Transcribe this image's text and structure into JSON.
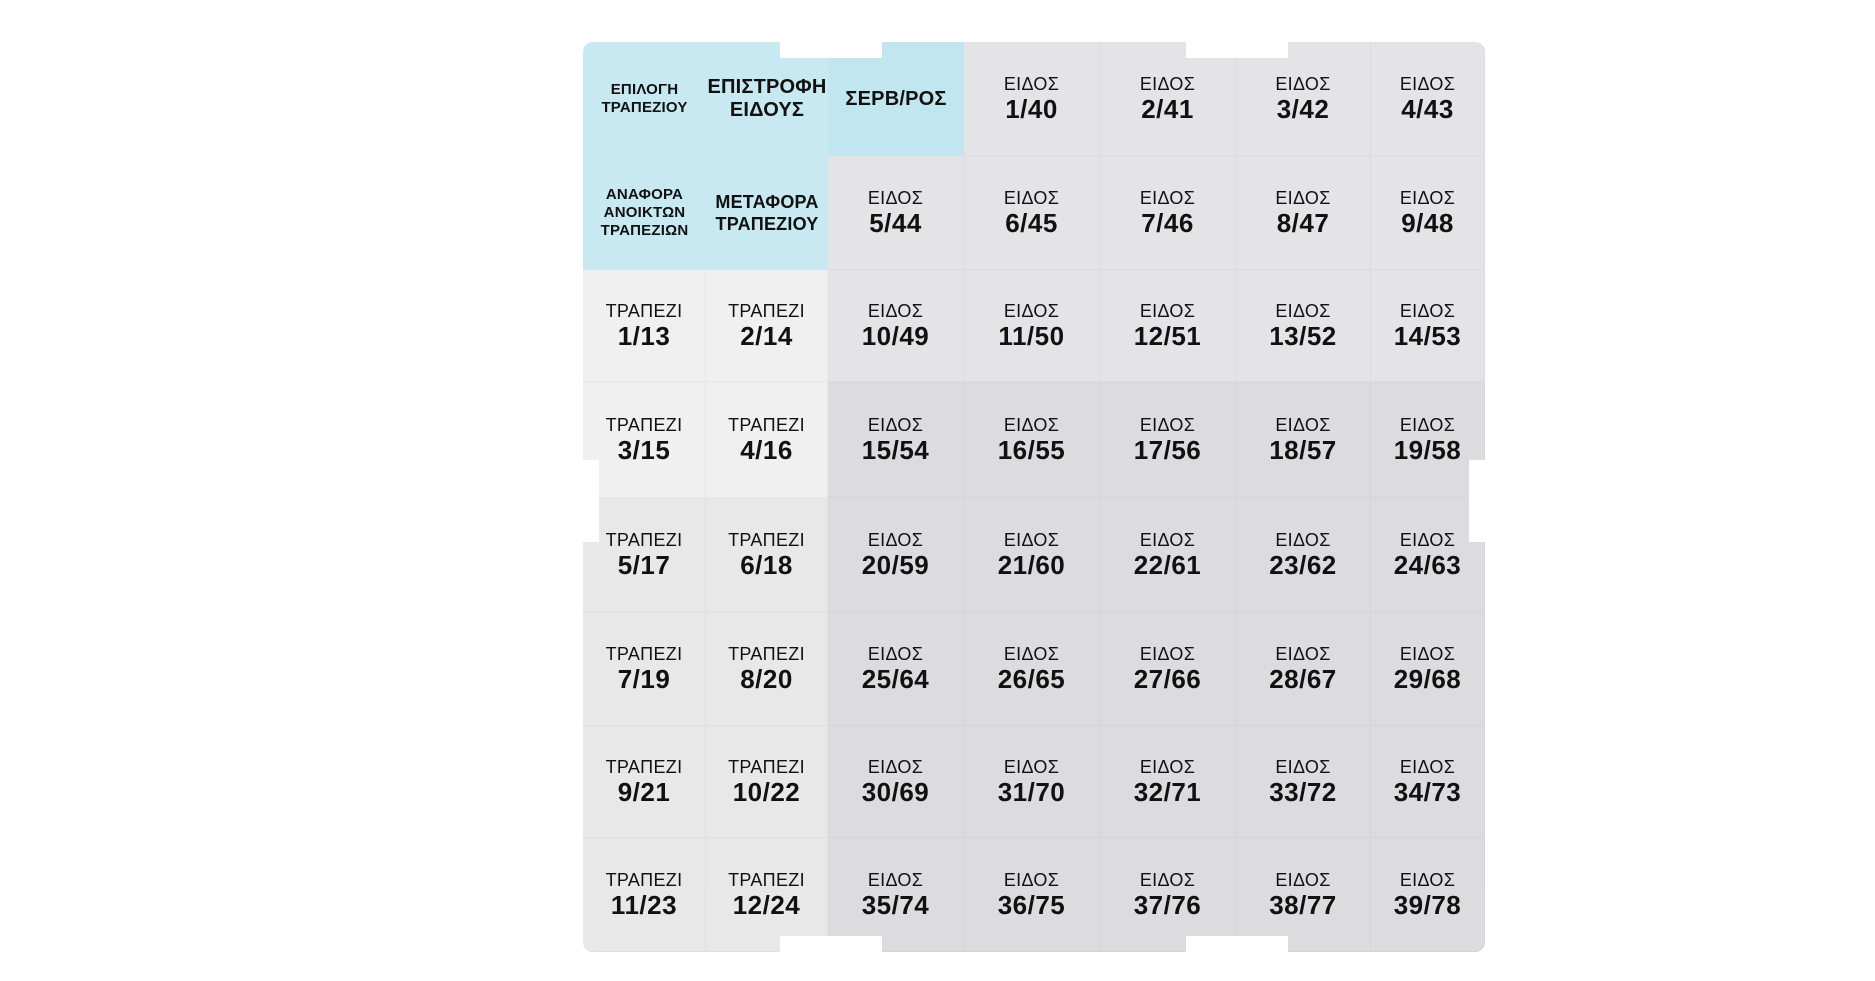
{
  "colors": {
    "function_key": "#c8e9f1",
    "function_key_light": "#c2e6f0",
    "table_key_light": "#f0f0f0",
    "table_key": "#e8e8e9",
    "item_key_light": "#e4e4e6",
    "item_key": "#dcdcde",
    "background": "#ffffff"
  },
  "function_keys": {
    "select_table": "ΕΠΙΛΟΓΗ\nΤΡΑΠΕΖΙΟΥ",
    "return_item": "ΕΠΙΣΤΡΟΦΗ\nΕΙΔΟΥΣ",
    "waiter": "ΣΕΡΒ/ΡΟΣ",
    "open_tables_report": "ΑΝΑΦΟΡΑ\nΑΝΟΙΚΤΩΝ\nΤΡΑΠΕΖΙΩΝ",
    "transfer_table": "ΜΕΤΑΦΟΡΑ\nΤΡΑΠΕΖΙΟΥ"
  },
  "item_label": "ΕΙΔΟΣ",
  "table_label": "ΤΡΑΠΕΖΙ",
  "item_keys": [
    "1/40",
    "2/41",
    "3/42",
    "4/43",
    "5/44",
    "6/45",
    "7/46",
    "8/47",
    "9/48",
    "10/49",
    "11/50",
    "12/51",
    "13/52",
    "14/53",
    "15/54",
    "16/55",
    "17/56",
    "18/57",
    "19/58",
    "20/59",
    "21/60",
    "22/61",
    "23/62",
    "24/63",
    "25/64",
    "26/65",
    "27/66",
    "28/67",
    "29/68",
    "30/69",
    "31/70",
    "32/71",
    "33/72",
    "34/73",
    "35/74",
    "36/75",
    "37/76",
    "38/77",
    "39/78"
  ],
  "table_keys": [
    "1/13",
    "2/14",
    "3/15",
    "4/16",
    "5/17",
    "6/18",
    "7/19",
    "8/20",
    "9/21",
    "10/22",
    "11/23",
    "12/24"
  ]
}
